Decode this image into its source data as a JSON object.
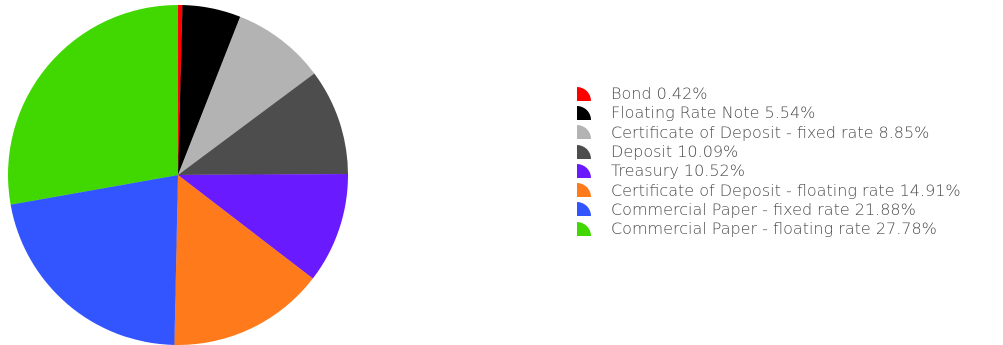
{
  "chart_data": {
    "type": "pie",
    "title": "",
    "legend_position": "right",
    "start_angle": "12 o'clock, clockwise",
    "slices": [
      {
        "label": "Bond 0.42%",
        "name": "Bond",
        "value": 0.42,
        "color": "#ff0000"
      },
      {
        "label": "Floating Rate Note 5.54%",
        "name": "Floating Rate Note",
        "value": 5.54,
        "color": "#000000"
      },
      {
        "label": "Certificate of Deposit - fixed rate 8.85%",
        "name": "Certificate of Deposit - fixed rate",
        "value": 8.85,
        "color": "#b3b3b3"
      },
      {
        "label": "Deposit 10.09%",
        "name": "Deposit",
        "value": 10.09,
        "color": "#4d4d4d"
      },
      {
        "label": "Treasury 10.52%",
        "name": "Treasury",
        "value": 10.52,
        "color": "#6a1aff"
      },
      {
        "label": "Certificate of Deposit - floating rate 14.91%",
        "name": "Certificate of Deposit - floating rate",
        "value": 14.91,
        "color": "#ff7a1a"
      },
      {
        "label": "Commercial Paper - fixed rate 21.88%",
        "name": "Commercial Paper - fixed rate",
        "value": 21.88,
        "color": "#3355ff"
      },
      {
        "label": "Commercial Paper - floating rate 27.78%",
        "name": "Commercial Paper - floating rate",
        "value": 27.78,
        "color": "#40d800"
      }
    ]
  }
}
